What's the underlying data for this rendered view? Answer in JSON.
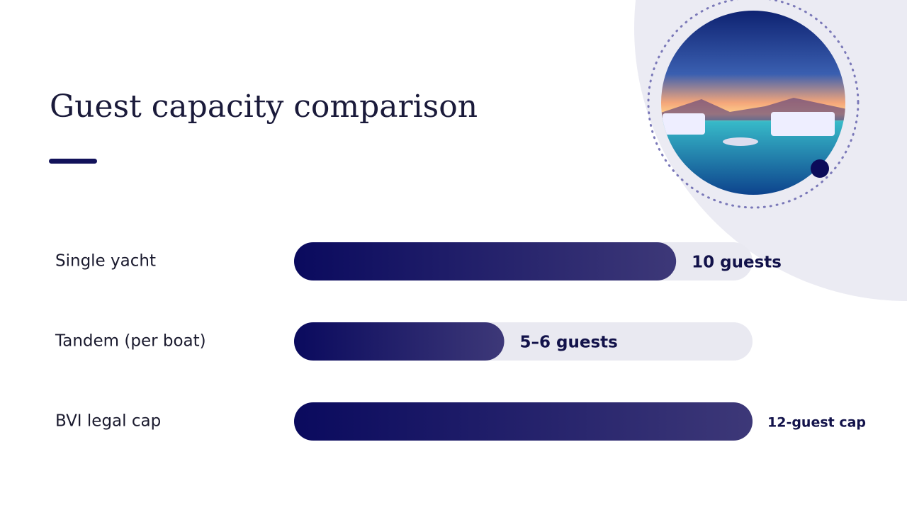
{
  "chart_data": {
    "type": "bar",
    "orientation": "horizontal",
    "title": "Guest capacity comparison",
    "categories": [
      "Single yacht",
      "Tandem (per boat)",
      "BVI legal cap"
    ],
    "values": [
      10,
      5.5,
      12
    ],
    "value_labels": [
      "10 guests",
      "5–6 guests",
      "12-guest cap"
    ],
    "xlim": [
      0,
      12
    ],
    "colors": [
      "#0a0a5e",
      "#3d3878"
    ],
    "track_color": "#e9e9f1"
  }
}
